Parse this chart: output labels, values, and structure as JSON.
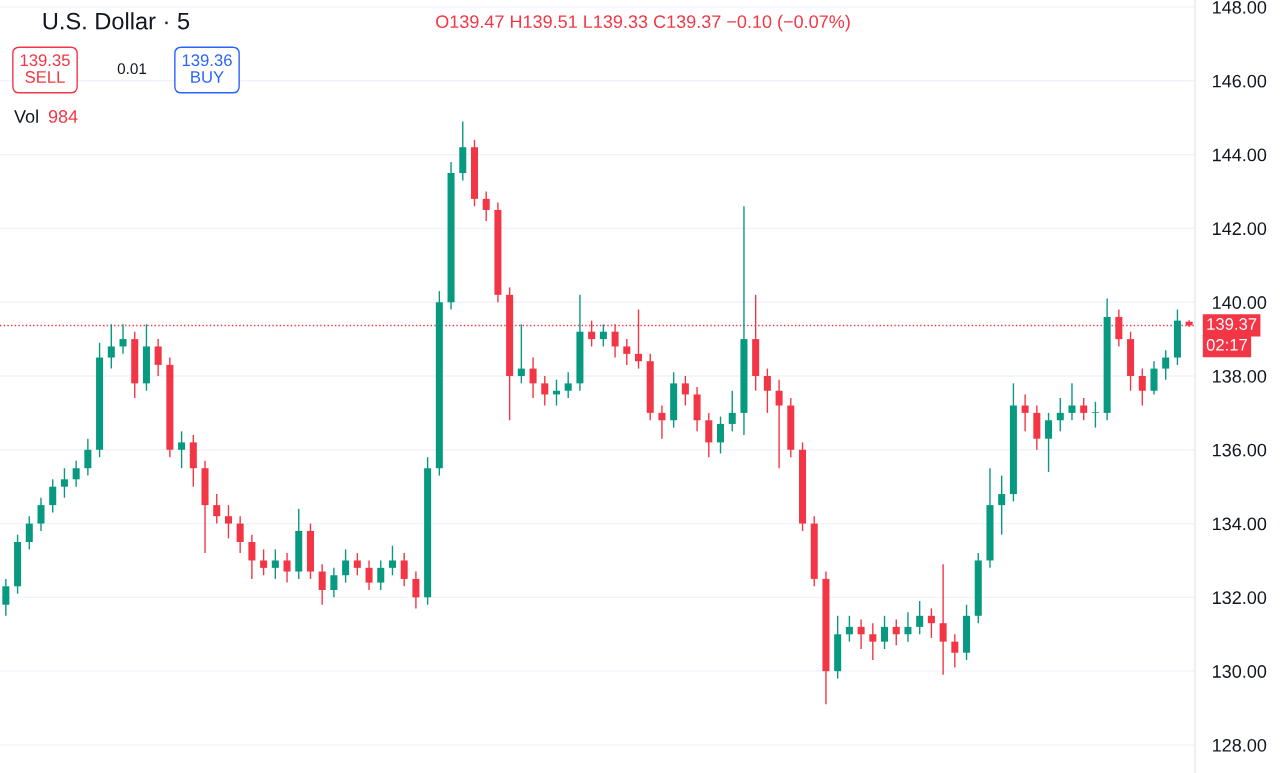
{
  "chart_data": {
    "type": "candlestick",
    "title": "U.S. Dollar · 5",
    "annotations": [
      "O139.47 H139.51 L139.33 C139.37 −0.10 (−0.07%)",
      "139.35\nSELL",
      "0.01",
      "139.36\nBUY",
      "Vol",
      "984",
      "02:17"
    ],
    "categories": [
      null,
      null,
      null,
      null,
      null,
      null,
      null,
      null,
      null,
      null,
      null,
      null,
      null,
      null,
      null,
      null,
      null,
      null,
      null,
      null,
      null,
      null,
      null,
      null,
      null,
      null,
      null,
      null,
      null,
      null,
      null,
      null,
      null,
      null,
      null,
      null,
      null,
      null,
      null,
      null,
      null,
      null,
      null,
      null,
      null,
      null,
      null,
      null,
      null,
      null,
      null,
      null,
      null,
      null,
      null,
      null,
      null,
      null,
      null,
      null,
      null,
      null,
      null,
      null,
      null,
      null,
      null,
      null,
      null,
      null,
      null,
      null,
      null,
      null,
      null,
      null,
      null,
      null,
      null,
      null,
      null,
      null,
      null,
      null,
      null,
      null,
      null,
      null,
      null,
      null,
      null,
      null,
      null,
      null,
      null,
      null,
      null,
      null,
      null,
      null,
      null,
      null
    ],
    "ohlc": [
      [
        131.8,
        132.5,
        131.5,
        132.3
      ],
      [
        132.3,
        133.7,
        132.1,
        133.5
      ],
      [
        133.5,
        134.2,
        133.3,
        134.0
      ],
      [
        134.0,
        134.7,
        133.8,
        134.5
      ],
      [
        134.5,
        135.2,
        134.3,
        135.0
      ],
      [
        135.0,
        135.5,
        134.7,
        135.2
      ],
      [
        135.2,
        135.7,
        135.0,
        135.5
      ],
      [
        135.5,
        136.3,
        135.3,
        136.0
      ],
      [
        136.0,
        138.9,
        135.8,
        138.5
      ],
      [
        138.5,
        139.4,
        138.2,
        138.8
      ],
      [
        138.8,
        139.4,
        138.6,
        139.0
      ],
      [
        139.0,
        139.2,
        137.4,
        137.8
      ],
      [
        137.8,
        139.4,
        137.6,
        138.8
      ],
      [
        138.8,
        139.0,
        138.0,
        138.3
      ],
      [
        138.3,
        138.5,
        135.8,
        136.0
      ],
      [
        136.0,
        136.5,
        135.5,
        136.2
      ],
      [
        136.2,
        136.4,
        135.0,
        135.5
      ],
      [
        135.5,
        135.7,
        133.2,
        134.5
      ],
      [
        134.5,
        134.8,
        134.0,
        134.2
      ],
      [
        134.2,
        134.5,
        133.6,
        134.0
      ],
      [
        134.0,
        134.2,
        133.2,
        133.5
      ],
      [
        133.5,
        133.7,
        132.5,
        133.0
      ],
      [
        133.0,
        133.3,
        132.6,
        132.8
      ],
      [
        132.8,
        133.3,
        132.5,
        133.0
      ],
      [
        133.0,
        133.2,
        132.4,
        132.7
      ],
      [
        132.7,
        134.4,
        132.5,
        133.8
      ],
      [
        133.8,
        134.0,
        132.5,
        132.7
      ],
      [
        132.7,
        132.9,
        131.8,
        132.2
      ],
      [
        132.2,
        132.8,
        132.0,
        132.6
      ],
      [
        132.6,
        133.3,
        132.4,
        133.0
      ],
      [
        133.0,
        133.2,
        132.6,
        132.8
      ],
      [
        132.8,
        133.0,
        132.2,
        132.4
      ],
      [
        132.4,
        133.0,
        132.2,
        132.8
      ],
      [
        132.8,
        133.4,
        132.6,
        133.0
      ],
      [
        133.0,
        133.2,
        132.3,
        132.5
      ],
      [
        132.5,
        132.7,
        131.7,
        132.0
      ],
      [
        132.0,
        135.8,
        131.8,
        135.5
      ],
      [
        135.5,
        140.3,
        135.3,
        140.0
      ],
      [
        140.0,
        143.8,
        139.8,
        143.5
      ],
      [
        143.5,
        144.9,
        143.3,
        144.2
      ],
      [
        144.2,
        144.4,
        142.6,
        142.8
      ],
      [
        142.8,
        143.0,
        142.2,
        142.5
      ],
      [
        142.5,
        142.7,
        140.0,
        140.2
      ],
      [
        140.2,
        140.4,
        136.8,
        138.0
      ],
      [
        138.0,
        139.4,
        137.8,
        138.2
      ],
      [
        138.2,
        138.5,
        137.4,
        137.8
      ],
      [
        137.8,
        138.0,
        137.2,
        137.5
      ],
      [
        137.5,
        137.9,
        137.2,
        137.6
      ],
      [
        137.6,
        138.1,
        137.4,
        137.8
      ],
      [
        137.8,
        140.2,
        137.6,
        139.2
      ],
      [
        139.2,
        139.5,
        138.8,
        139.0
      ],
      [
        139.0,
        139.4,
        138.8,
        139.2
      ],
      [
        139.2,
        139.4,
        138.5,
        138.8
      ],
      [
        138.8,
        139.0,
        138.3,
        138.6
      ],
      [
        138.6,
        139.8,
        138.2,
        138.4
      ],
      [
        138.4,
        138.6,
        136.8,
        137.0
      ],
      [
        137.0,
        137.2,
        136.3,
        136.8
      ],
      [
        136.8,
        138.1,
        136.6,
        137.8
      ],
      [
        137.8,
        138.0,
        137.2,
        137.5
      ],
      [
        137.5,
        137.7,
        136.5,
        136.8
      ],
      [
        136.8,
        137.0,
        135.8,
        136.2
      ],
      [
        136.2,
        136.9,
        135.9,
        136.7
      ],
      [
        136.7,
        137.6,
        136.5,
        137.0
      ],
      [
        137.0,
        142.6,
        136.4,
        139.0
      ],
      [
        139.0,
        140.2,
        137.6,
        138.0
      ],
      [
        138.0,
        138.2,
        137.0,
        137.6
      ],
      [
        137.6,
        137.9,
        135.5,
        137.2
      ],
      [
        137.2,
        137.4,
        135.8,
        136.0
      ],
      [
        136.0,
        136.2,
        133.8,
        134.0
      ],
      [
        134.0,
        134.2,
        132.3,
        132.5
      ],
      [
        132.5,
        132.7,
        129.1,
        130.0
      ],
      [
        130.0,
        131.5,
        129.8,
        131.0
      ],
      [
        131.0,
        131.5,
        130.8,
        131.2
      ],
      [
        131.2,
        131.4,
        130.6,
        131.0
      ],
      [
        131.0,
        131.3,
        130.3,
        130.8
      ],
      [
        130.8,
        131.5,
        130.6,
        131.2
      ],
      [
        131.2,
        131.4,
        130.7,
        131.0
      ],
      [
        131.0,
        131.6,
        130.8,
        131.2
      ],
      [
        131.2,
        131.9,
        131.0,
        131.5
      ],
      [
        131.5,
        131.7,
        130.9,
        131.3
      ],
      [
        131.3,
        132.9,
        129.9,
        130.8
      ],
      [
        130.8,
        131.0,
        130.1,
        130.5
      ],
      [
        130.5,
        131.8,
        130.3,
        131.5
      ],
      [
        131.5,
        133.2,
        131.3,
        133.0
      ],
      [
        133.0,
        135.5,
        132.8,
        134.5
      ],
      [
        134.5,
        135.3,
        133.7,
        134.8
      ],
      [
        134.8,
        137.8,
        134.6,
        137.2
      ],
      [
        137.2,
        137.5,
        136.5,
        137.0
      ],
      [
        137.0,
        137.2,
        136.0,
        136.3
      ],
      [
        136.3,
        137.0,
        135.4,
        136.8
      ],
      [
        136.8,
        137.4,
        136.5,
        137.0
      ],
      [
        137.0,
        137.8,
        136.8,
        137.2
      ],
      [
        137.2,
        137.4,
        136.8,
        137.0
      ],
      [
        137.0,
        137.3,
        136.6,
        137.0
      ],
      [
        137.0,
        140.1,
        136.8,
        139.6
      ],
      [
        139.6,
        139.8,
        138.8,
        139.0
      ],
      [
        139.0,
        139.2,
        137.6,
        138.0
      ],
      [
        138.0,
        138.2,
        137.2,
        137.6
      ],
      [
        137.6,
        138.4,
        137.5,
        138.2
      ],
      [
        138.2,
        138.7,
        137.9,
        138.5
      ],
      [
        138.5,
        139.8,
        138.3,
        139.5
      ],
      [
        139.47,
        139.51,
        139.33,
        139.37
      ]
    ],
    "colors": [
      "#089981",
      "#089981",
      "#089981",
      "#089981",
      "#089981",
      "#089981",
      "#089981",
      "#089981",
      "#089981",
      "#089981",
      "#089981",
      "#f23645",
      "#089981",
      "#f23645",
      "#f23645",
      "#089981",
      "#f23645",
      "#f23645",
      "#f23645",
      "#f23645",
      "#f23645",
      "#f23645",
      "#f23645",
      "#089981",
      "#f23645",
      "#089981",
      "#f23645",
      "#f23645",
      "#089981",
      "#089981",
      "#f23645",
      "#f23645",
      "#089981",
      "#089981",
      "#f23645",
      "#f23645",
      "#089981",
      "#089981",
      "#089981",
      "#089981",
      "#f23645",
      "#f23645",
      "#f23645",
      "#f23645",
      "#089981",
      "#f23645",
      "#f23645",
      "#089981",
      "#089981",
      "#089981",
      "#f23645",
      "#089981",
      "#f23645",
      "#f23645",
      "#f23645",
      "#f23645",
      "#f23645",
      "#089981",
      "#f23645",
      "#f23645",
      "#f23645",
      "#089981",
      "#089981",
      "#089981",
      "#f23645",
      "#f23645",
      "#f23645",
      "#f23645",
      "#f23645",
      "#f23645",
      "#f23645",
      "#089981",
      "#089981",
      "#f23645",
      "#f23645",
      "#089981",
      "#f23645",
      "#089981",
      "#089981",
      "#f23645",
      "#f23645",
      "#f23645",
      "#089981",
      "#089981",
      "#089981",
      "#089981",
      "#089981",
      "#f23645",
      "#f23645",
      "#089981",
      "#089981",
      "#089981",
      "#f23645",
      "#089981",
      "#089981",
      "#f23645",
      "#f23645",
      "#f23645",
      "#089981",
      "#089981",
      "#089981",
      "#f23645"
    ],
    "ylim": [
      127.24,
      148.19
    ],
    "yticks": [
      {
        "value": 128,
        "label": "128.00"
      },
      {
        "value": 130,
        "label": "130.00"
      },
      {
        "value": 132,
        "label": "132.00"
      },
      {
        "value": 134,
        "label": "134.00"
      },
      {
        "value": 136,
        "label": "136.00"
      },
      {
        "value": 138,
        "label": "138.00"
      },
      {
        "value": 140,
        "label": "140.00"
      },
      {
        "value": 142,
        "label": "142.00"
      },
      {
        "value": 144,
        "label": "144.00"
      },
      {
        "value": 146,
        "label": "146.00"
      },
      {
        "value": 148,
        "label": "148.00"
      }
    ],
    "ref_lines": [
      {
        "axis": "y",
        "value": 139.37,
        "label": "139.37",
        "color": "#f23645",
        "line_style": "dotted"
      }
    ],
    "grid": "y"
  }
}
